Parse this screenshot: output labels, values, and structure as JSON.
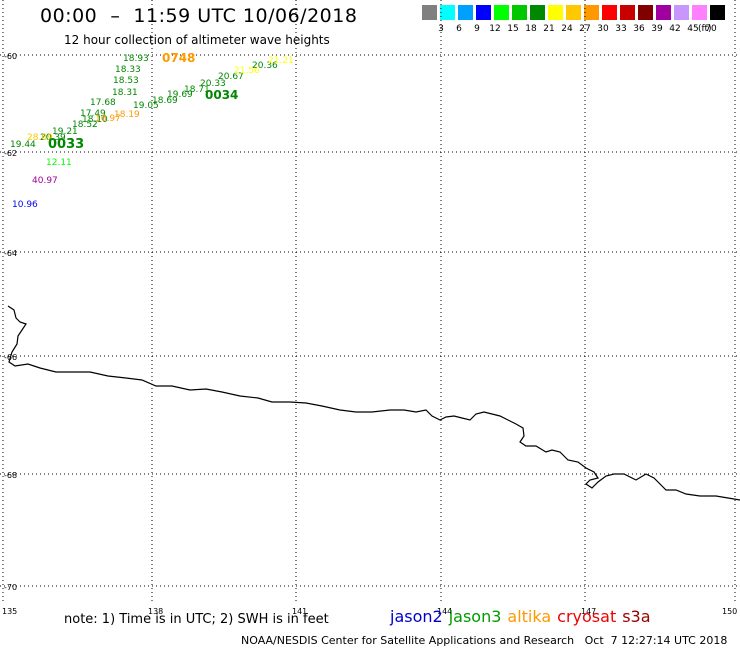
{
  "header": {
    "title": "00:00  –  11:59 UTC 10/06/2018",
    "subtitle": "12 hour collection of altimeter wave heights"
  },
  "legend": {
    "unit": "(ft)",
    "bins": [
      {
        "label": "3",
        "color": "#808080"
      },
      {
        "label": "6",
        "color": "#00ffff"
      },
      {
        "label": "9",
        "color": "#00a0ff"
      },
      {
        "label": "12",
        "color": "#0000ff"
      },
      {
        "label": "15",
        "color": "#00ff00"
      },
      {
        "label": "18",
        "color": "#00c800"
      },
      {
        "label": "21",
        "color": "#008800"
      },
      {
        "label": "24",
        "color": "#ffff00"
      },
      {
        "label": "27",
        "color": "#ffc800"
      },
      {
        "label": "30",
        "color": "#ff9900"
      },
      {
        "label": "33",
        "color": "#ff0000"
      },
      {
        "label": "36",
        "color": "#c80000"
      },
      {
        "label": "39",
        "color": "#800000"
      },
      {
        "label": "42",
        "color": "#a000a0"
      },
      {
        "label": "45",
        "color": "#c896ff"
      },
      {
        "label": "70",
        "color": "#ff80ff"
      },
      {
        "label": "",
        "color": "#000000"
      }
    ]
  },
  "map": {
    "lat_ticks": [
      "-60",
      "-62",
      "-64",
      "-66",
      "-68",
      "-70"
    ],
    "lon_ticks": [
      "135",
      "138",
      "141",
      "144",
      "147",
      "150"
    ],
    "observations": [
      {
        "text": "18.93",
        "color": "#008800"
      },
      {
        "text": "0748",
        "color": "#ff9900"
      },
      {
        "text": "18.33",
        "color": "#008800"
      },
      {
        "text": "18.53",
        "color": "#008800"
      },
      {
        "text": "18.31",
        "color": "#008800"
      },
      {
        "text": "17.68",
        "color": "#008800"
      },
      {
        "text": "17.49",
        "color": "#008800"
      },
      {
        "text": "18.10",
        "color": "#008800"
      },
      {
        "text": "18.52",
        "color": "#008800"
      },
      {
        "text": "19.21",
        "color": "#008800"
      },
      {
        "text": "20.39",
        "color": "#008800"
      },
      {
        "text": "19.44",
        "color": "#008800"
      },
      {
        "text": "28.09",
        "color": "#ffc800"
      },
      {
        "text": "0033",
        "color": "#008800"
      },
      {
        "text": "12.11",
        "color": "#00ff00"
      },
      {
        "text": "40.97",
        "color": "#a000a0"
      },
      {
        "text": "10.96",
        "color": "#0000ff"
      },
      {
        "text": "19.05",
        "color": "#008800"
      },
      {
        "text": "18.69",
        "color": "#008800"
      },
      {
        "text": "19.69",
        "color": "#008800"
      },
      {
        "text": "18.71",
        "color": "#008800"
      },
      {
        "text": "0034",
        "color": "#008800"
      },
      {
        "text": "20.33",
        "color": "#008800"
      },
      {
        "text": "20.67",
        "color": "#008800"
      },
      {
        "text": "21.56",
        "color": "#ffff00"
      },
      {
        "text": "20.36",
        "color": "#008800"
      },
      {
        "text": "21.21",
        "color": "#ffff00"
      },
      {
        "text": "16.97",
        "color": "#ff9900"
      },
      {
        "text": "18.19",
        "color": "#ff9900"
      }
    ]
  },
  "footer": {
    "note": "note: 1) Time is in UTC; 2) SWH is in feet",
    "satellites": [
      {
        "name": "jason2",
        "color": "#0000cc"
      },
      {
        "name": "jason3",
        "color": "#009900"
      },
      {
        "name": "altika",
        "color": "#ff9900"
      },
      {
        "name": "cryosat",
        "color": "#ee0000"
      },
      {
        "name": "s3a",
        "color": "#990000"
      }
    ],
    "credit": "NOAA/NESDIS Center for Satellite Applications and Research   Oct  7 12:27:14 UTC 2018"
  }
}
